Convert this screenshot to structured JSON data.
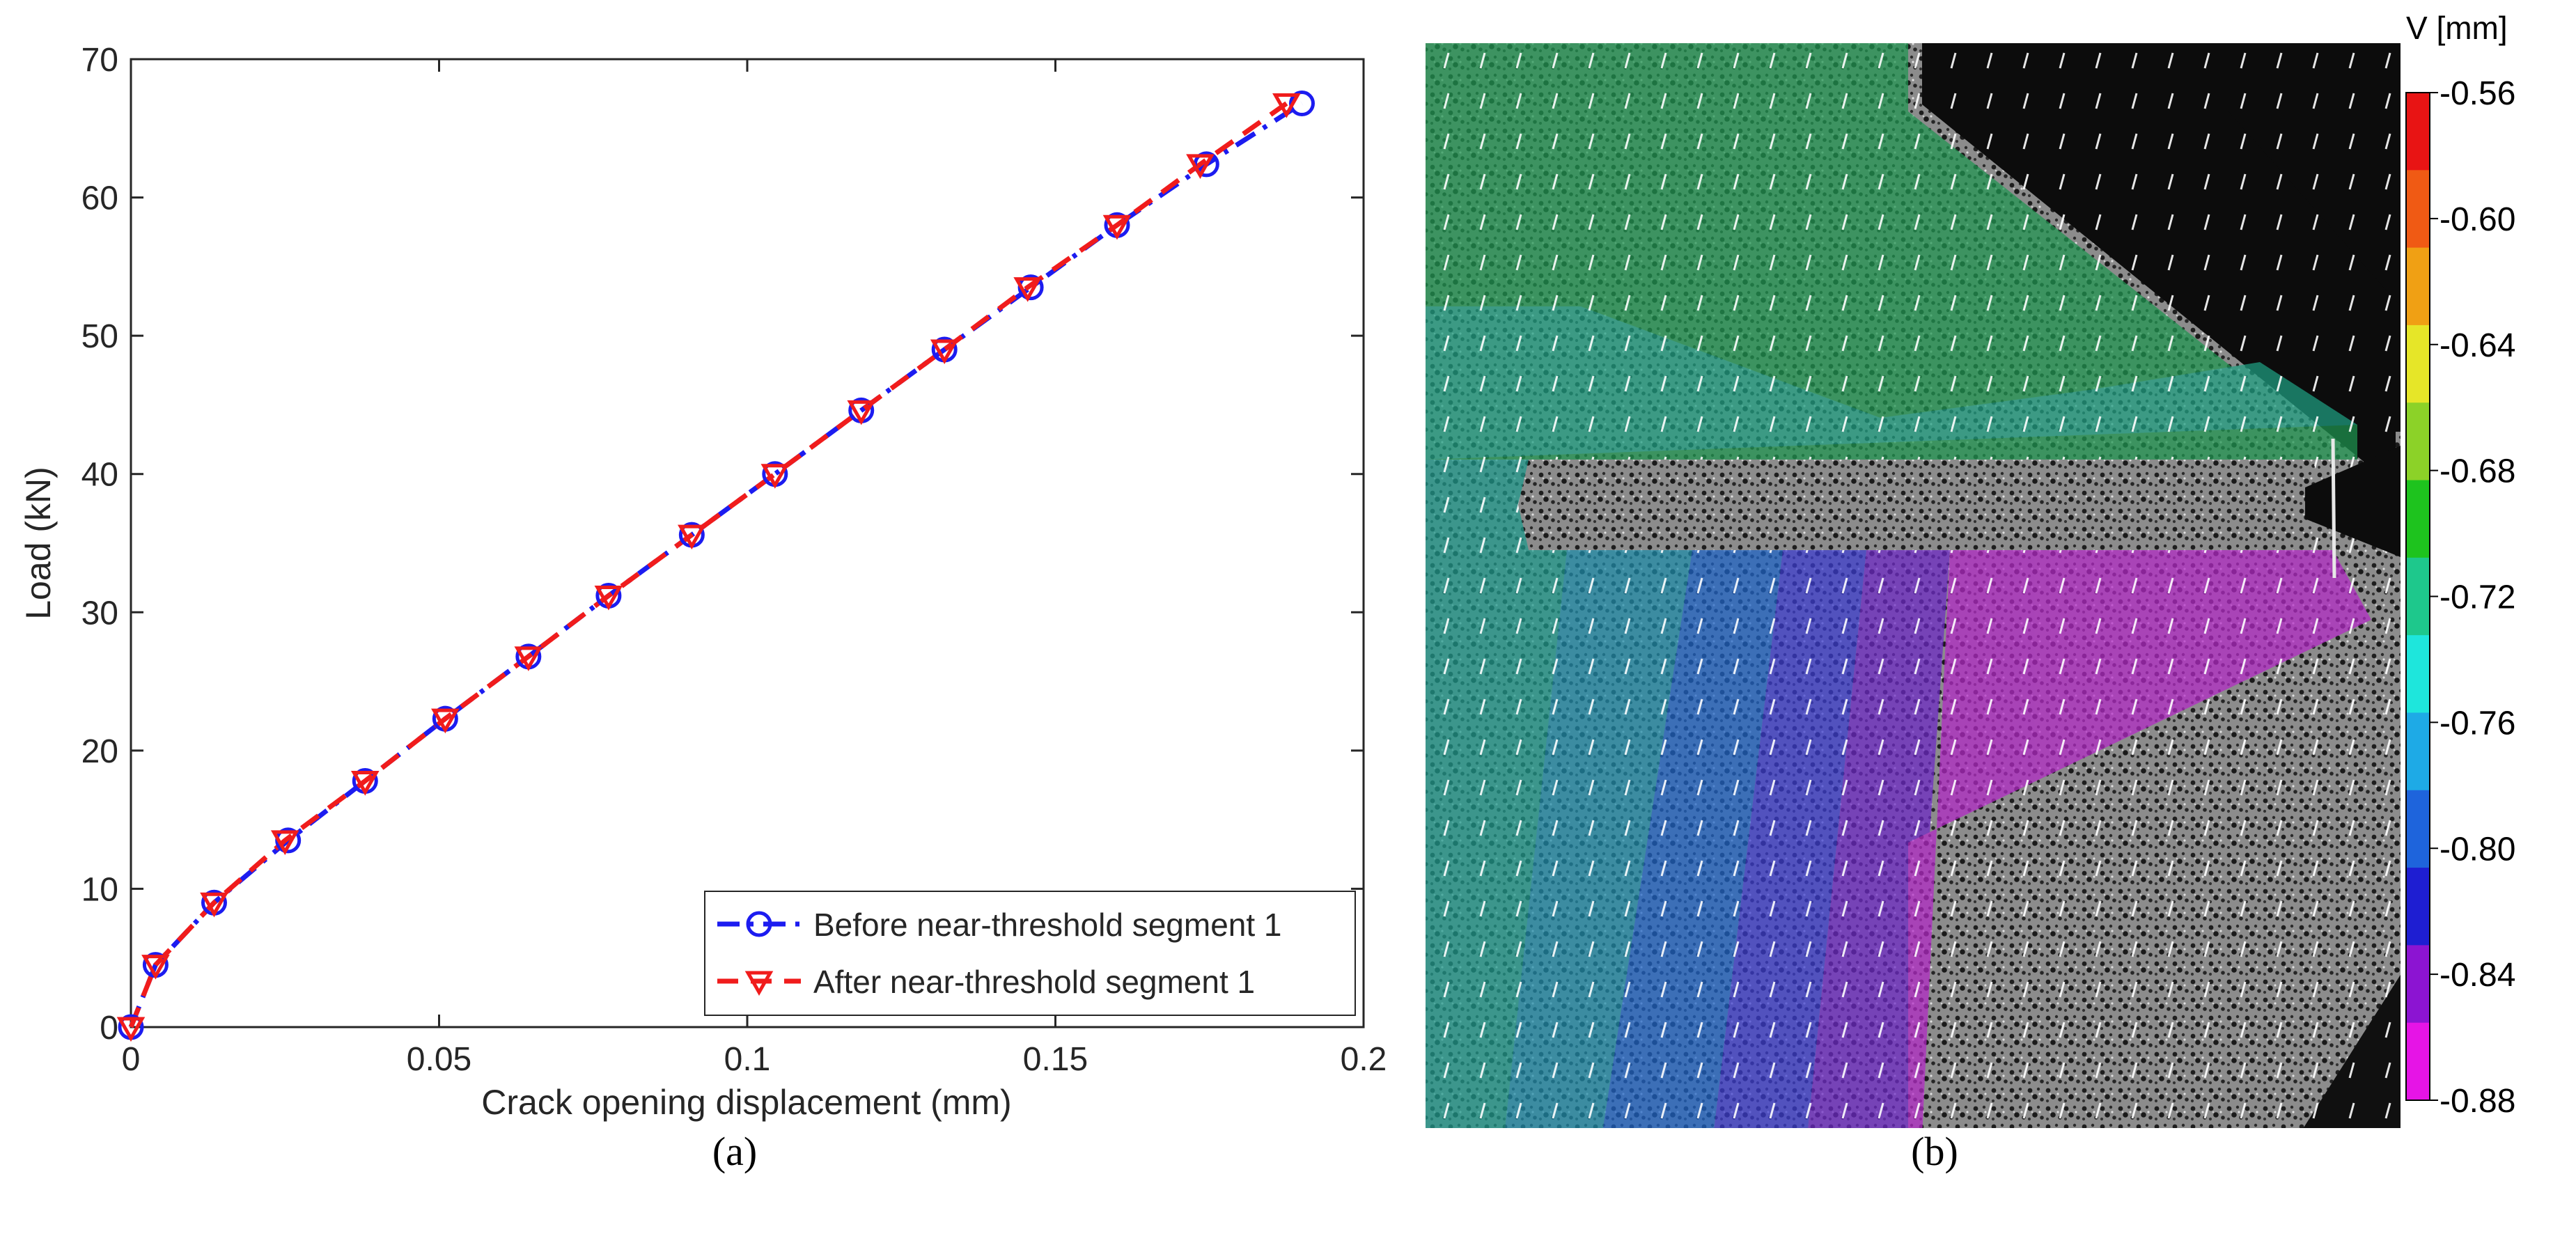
{
  "chart_data": [
    {
      "type": "line",
      "panel_label": "(a)",
      "xlabel": "Crack opening displacement (mm)",
      "ylabel": "Load (kN)",
      "xlim": [
        0,
        0.2
      ],
      "ylim": [
        0,
        70
      ],
      "xticks": [
        0,
        0.05,
        0.1,
        0.15,
        0.2
      ],
      "xtick_labels": [
        "0",
        "0.05",
        "0.1",
        "0.15",
        "0.2"
      ],
      "yticks": [
        0,
        10,
        20,
        30,
        40,
        50,
        60,
        70
      ],
      "ytick_labels": [
        "0",
        "10",
        "20",
        "30",
        "40",
        "50",
        "60",
        "70"
      ],
      "grid": false,
      "legend_position": "bottom-right",
      "series": [
        {
          "name": "Before near-threshold segment 1",
          "color": "#1c1cf0",
          "marker": "circle",
          "line_style": "dash-dot",
          "x": [
            0.0,
            0.004,
            0.0135,
            0.0255,
            0.038,
            0.051,
            0.0645,
            0.0775,
            0.091,
            0.1045,
            0.1185,
            0.132,
            0.146,
            0.16,
            0.1745,
            0.19
          ],
          "y": [
            0.0,
            4.5,
            9.0,
            13.5,
            17.8,
            22.3,
            26.8,
            31.2,
            35.6,
            40.0,
            44.6,
            49.0,
            53.5,
            58.0,
            62.4,
            66.8
          ]
        },
        {
          "name": "After near-threshold segment 1",
          "color": "#f01c1c",
          "marker": "triangle-down",
          "line_style": "dash",
          "x": [
            0.0,
            0.004,
            0.0135,
            0.025,
            0.038,
            0.051,
            0.0645,
            0.0775,
            0.091,
            0.1045,
            0.1185,
            0.132,
            0.1455,
            0.16,
            0.1735,
            0.1875
          ],
          "y": [
            0.0,
            4.5,
            9.0,
            13.5,
            17.8,
            22.3,
            26.8,
            31.2,
            35.6,
            40.0,
            44.6,
            49.0,
            53.5,
            58.0,
            62.4,
            66.8
          ]
        }
      ]
    },
    {
      "type": "heatmap",
      "panel_label": "(b)",
      "colorbar_title": "V [mm]",
      "colorbar_range": [
        -0.88,
        -0.56
      ],
      "colorbar_ticks": [
        "-0.56",
        "-0.60",
        "-0.64",
        "-0.68",
        "-0.72",
        "-0.76",
        "-0.80",
        "-0.84",
        "-0.88"
      ],
      "colorbar_colors": [
        "#e81414",
        "#f05a14",
        "#f0a014",
        "#e6e628",
        "#8cd228",
        "#1ec31e",
        "#1ec88c",
        "#1ee6dc",
        "#1eaae6",
        "#1e64dc",
        "#1e1ed2",
        "#8c14d2",
        "#e614e6"
      ],
      "field_colors": {
        "upper": "#1e9650",
        "upper_mid": "#1ea082",
        "left": "#1e9a8c",
        "band1": "#1e8caa",
        "band2": "#1e64c8",
        "band3": "#3c3cd2",
        "band4": "#6e28c8",
        "tip": "#b428c8"
      }
    }
  ]
}
